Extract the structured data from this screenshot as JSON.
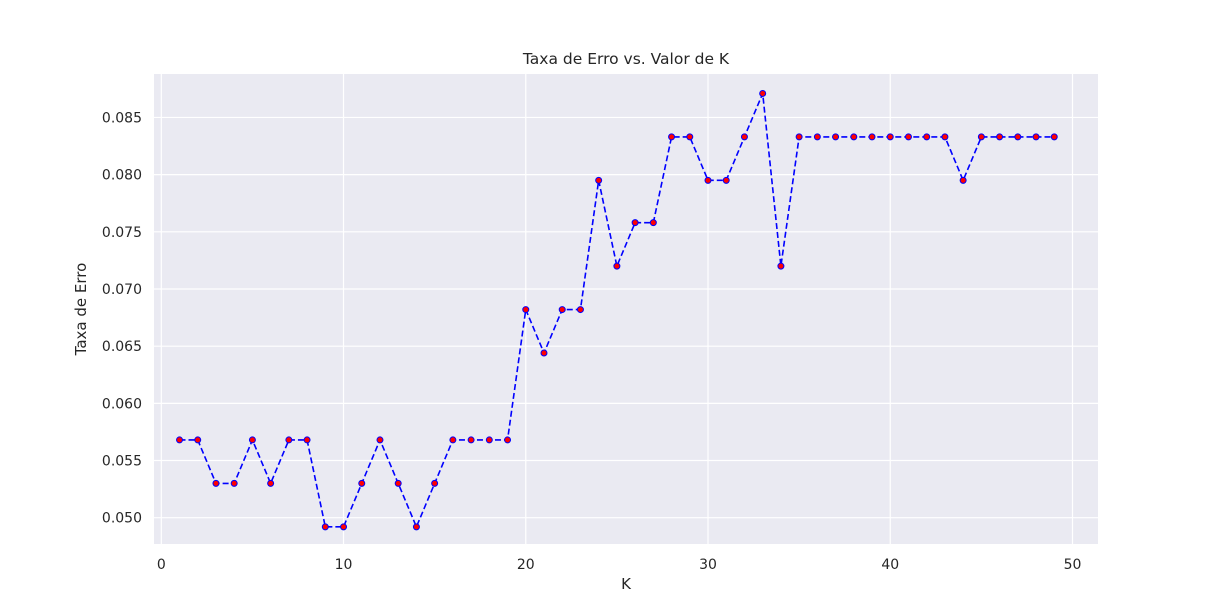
{
  "chart_data": {
    "type": "line",
    "title": "Taxa de Erro vs. Valor de K",
    "xlabel": "K",
    "ylabel": "Taxa de Erro",
    "xlim": [
      -0.4,
      51.4
    ],
    "ylim": [
      0.0477,
      0.0888
    ],
    "x_ticks": [
      0,
      10,
      20,
      30,
      40,
      50
    ],
    "y_ticks": [
      0.05,
      0.055,
      0.06,
      0.065,
      0.07,
      0.075,
      0.08,
      0.085
    ],
    "x_tick_labels": [
      "0",
      "10",
      "20",
      "30",
      "40",
      "50"
    ],
    "y_tick_labels": [
      "0.050",
      "0.055",
      "0.060",
      "0.065",
      "0.070",
      "0.075",
      "0.080",
      "0.085"
    ],
    "grid": true,
    "background_color": "#eaeaf2",
    "grid_color": "#ffffff",
    "series": [
      {
        "line_color": "#0000ff",
        "line_style": "dashed",
        "marker": "circle",
        "marker_face_color": "#ff0000",
        "marker_edge_color": "#0000ff",
        "x": [
          1,
          2,
          3,
          4,
          5,
          6,
          7,
          8,
          9,
          10,
          11,
          12,
          13,
          14,
          15,
          16,
          17,
          18,
          19,
          20,
          21,
          22,
          23,
          24,
          25,
          26,
          27,
          28,
          29,
          30,
          31,
          32,
          33,
          34,
          35,
          36,
          37,
          38,
          39,
          40,
          41,
          42,
          43,
          44,
          45,
          46,
          47,
          48,
          49
        ],
        "values": [
          0.0568,
          0.0568,
          0.053,
          0.053,
          0.0568,
          0.053,
          0.0568,
          0.0568,
          0.0492,
          0.0492,
          0.053,
          0.0568,
          0.053,
          0.0492,
          0.053,
          0.0568,
          0.0568,
          0.0568,
          0.0568,
          0.0682,
          0.0644,
          0.0682,
          0.0682,
          0.0795,
          0.072,
          0.0758,
          0.0758,
          0.0833,
          0.0833,
          0.0795,
          0.0795,
          0.0833,
          0.0871,
          0.072,
          0.0833,
          0.0833,
          0.0833,
          0.0833,
          0.0833,
          0.0833,
          0.0833,
          0.0833,
          0.0833,
          0.0795,
          0.0833,
          0.0833,
          0.0833,
          0.0833,
          0.0833
        ]
      }
    ]
  }
}
